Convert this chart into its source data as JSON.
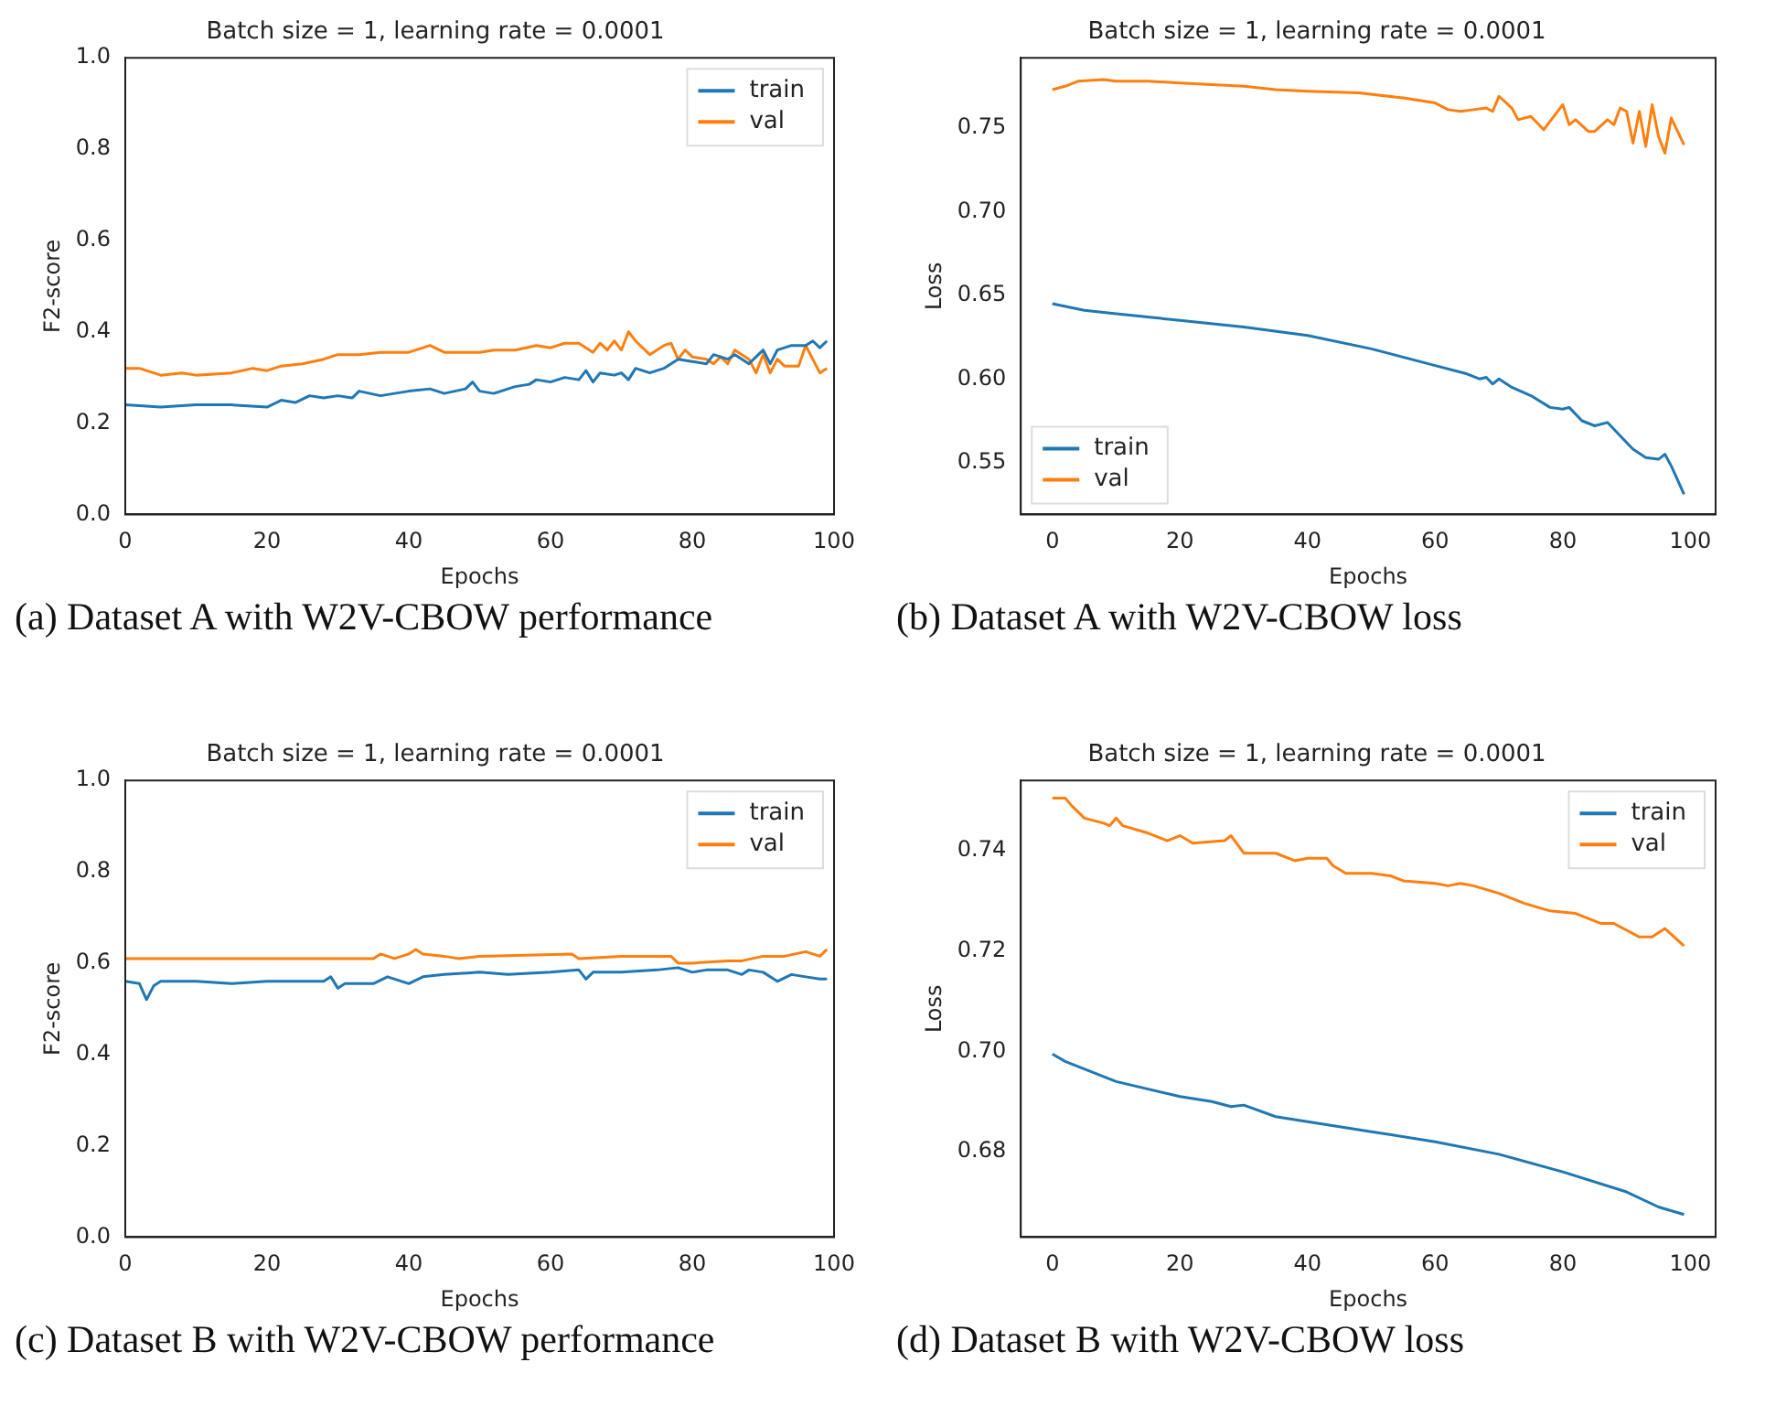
{
  "chart_data": [
    {
      "type": "line",
      "title": "Batch size = 1, learning rate = 0.0001",
      "xlabel": "Epochs",
      "ylabel": "F2-score",
      "xlim": [
        0,
        100
      ],
      "xticks": [
        0,
        20,
        40,
        60,
        80,
        100
      ],
      "ylim": [
        0,
        1
      ],
      "yticks": [
        {
          "value": 0,
          "label": "0.0"
        },
        0.2,
        0.4,
        0.6,
        0.8,
        {
          "value": 1,
          "label": "1.0"
        }
      ],
      "grid": false,
      "legend": "top right",
      "marker": "none",
      "line_style": "solid",
      "annotations": [
        "(a) Dataset A with W2V-CBOW performance"
      ],
      "series": [
        {
          "name": "train",
          "color": "#1f77b4",
          "x": [
            0,
            5,
            10,
            15,
            20,
            22,
            24,
            26,
            28,
            30,
            32,
            33,
            36,
            40,
            43,
            45,
            48,
            49,
            50,
            52,
            55,
            57,
            58,
            60,
            62,
            64,
            65,
            66,
            67,
            69,
            70,
            71,
            72,
            74,
            76,
            77,
            78,
            80,
            82,
            83,
            85,
            86,
            88,
            90,
            91,
            92,
            94,
            96,
            97,
            98,
            99
          ],
          "values": [
            0.24,
            0.235,
            0.24,
            0.24,
            0.235,
            0.25,
            0.245,
            0.26,
            0.255,
            0.26,
            0.255,
            0.27,
            0.26,
            0.27,
            0.275,
            0.265,
            0.275,
            0.29,
            0.27,
            0.265,
            0.28,
            0.285,
            0.295,
            0.29,
            0.3,
            0.295,
            0.315,
            0.29,
            0.31,
            0.305,
            0.31,
            0.295,
            0.32,
            0.31,
            0.32,
            0.33,
            0.34,
            0.335,
            0.33,
            0.35,
            0.34,
            0.35,
            0.33,
            0.36,
            0.33,
            0.36,
            0.37,
            0.37,
            0.38,
            0.365,
            0.38
          ]
        },
        {
          "name": "val",
          "color": "#ff7f0e",
          "x": [
            0,
            2,
            5,
            8,
            10,
            15,
            18,
            20,
            22,
            25,
            28,
            30,
            33,
            36,
            40,
            43,
            45,
            50,
            52,
            55,
            58,
            60,
            62,
            64,
            66,
            67,
            68,
            69,
            70,
            71,
            72,
            74,
            76,
            77,
            78,
            79,
            80,
            82,
            83,
            84,
            85,
            86,
            88,
            89,
            90,
            91,
            92,
            93,
            95,
            96,
            97,
            98,
            99
          ],
          "values": [
            0.32,
            0.32,
            0.305,
            0.31,
            0.305,
            0.31,
            0.32,
            0.315,
            0.325,
            0.33,
            0.34,
            0.35,
            0.35,
            0.355,
            0.355,
            0.37,
            0.355,
            0.355,
            0.36,
            0.36,
            0.37,
            0.365,
            0.375,
            0.375,
            0.355,
            0.375,
            0.36,
            0.38,
            0.36,
            0.4,
            0.38,
            0.35,
            0.37,
            0.375,
            0.34,
            0.36,
            0.345,
            0.34,
            0.33,
            0.345,
            0.33,
            0.36,
            0.34,
            0.31,
            0.35,
            0.31,
            0.34,
            0.325,
            0.325,
            0.37,
            0.34,
            0.31,
            0.32
          ]
        }
      ]
    },
    {
      "type": "line",
      "title": "Batch size = 1, learning rate = 0.0001",
      "xlabel": "Epochs",
      "ylabel": "Loss",
      "xlim": [
        -4.95,
        103.95
      ],
      "xticks": [
        0,
        20,
        40,
        60,
        80,
        100
      ],
      "ylim": [
        0.519,
        0.792
      ],
      "yticks": [
        0.55,
        {
          "value": 0.6,
          "label": "0.60"
        },
        0.65,
        {
          "value": 0.7,
          "label": "0.70"
        },
        0.75
      ],
      "grid": false,
      "legend": "bottom left",
      "marker": "none",
      "line_style": "solid",
      "annotations": [
        "(b) Dataset A with W2V-CBOW loss"
      ],
      "series": [
        {
          "name": "train",
          "color": "#1f77b4",
          "x": [
            0,
            5,
            10,
            20,
            30,
            40,
            50,
            60,
            65,
            67,
            68,
            69,
            70,
            72,
            75,
            78,
            80,
            81,
            83,
            85,
            87,
            89,
            91,
            93,
            95,
            96,
            97,
            99
          ],
          "values": [
            0.645,
            0.641,
            0.639,
            0.635,
            0.631,
            0.626,
            0.618,
            0.608,
            0.603,
            0.6,
            0.601,
            0.597,
            0.6,
            0.595,
            0.59,
            0.583,
            0.582,
            0.583,
            0.575,
            0.572,
            0.574,
            0.566,
            0.558,
            0.553,
            0.552,
            0.555,
            0.548,
            0.531
          ]
        },
        {
          "name": "val",
          "color": "#ff7f0e",
          "x": [
            0,
            2,
            4,
            8,
            10,
            15,
            20,
            30,
            35,
            40,
            48,
            55,
            60,
            62,
            64,
            66,
            68,
            69,
            70,
            72,
            73,
            75,
            77,
            78,
            80,
            81,
            82,
            84,
            85,
            87,
            88,
            89,
            90,
            91,
            92,
            93,
            94,
            95,
            96,
            97,
            99
          ],
          "values": [
            0.773,
            0.775,
            0.778,
            0.779,
            0.778,
            0.778,
            0.777,
            0.775,
            0.773,
            0.772,
            0.771,
            0.768,
            0.765,
            0.761,
            0.76,
            0.761,
            0.762,
            0.76,
            0.769,
            0.762,
            0.755,
            0.757,
            0.749,
            0.754,
            0.764,
            0.752,
            0.755,
            0.748,
            0.748,
            0.755,
            0.752,
            0.762,
            0.76,
            0.741,
            0.76,
            0.739,
            0.764,
            0.745,
            0.735,
            0.756,
            0.74
          ]
        }
      ]
    },
    {
      "type": "line",
      "title": "Batch size = 1, learning rate = 0.0001",
      "xlabel": "Epochs",
      "ylabel": "F2-score",
      "xlim": [
        0,
        100
      ],
      "xticks": [
        0,
        20,
        40,
        60,
        80,
        100
      ],
      "ylim": [
        0,
        1
      ],
      "yticks": [
        {
          "value": 0,
          "label": "0.0"
        },
        0.2,
        0.4,
        0.6,
        0.8,
        {
          "value": 1,
          "label": "1.0"
        }
      ],
      "grid": false,
      "legend": "top right",
      "marker": "none",
      "line_style": "solid",
      "annotations": [
        "(c) Dataset B with W2V-CBOW performance"
      ],
      "series": [
        {
          "name": "train",
          "color": "#1f77b4",
          "x": [
            0,
            2,
            3,
            4,
            5,
            10,
            15,
            20,
            28,
            29,
            30,
            31,
            35,
            37,
            40,
            42,
            45,
            50,
            54,
            60,
            64,
            65,
            66,
            70,
            75,
            78,
            80,
            82,
            85,
            87,
            88,
            90,
            92,
            94,
            96,
            98,
            99
          ],
          "values": [
            0.56,
            0.555,
            0.52,
            0.55,
            0.56,
            0.56,
            0.555,
            0.56,
            0.56,
            0.57,
            0.545,
            0.555,
            0.555,
            0.57,
            0.555,
            0.57,
            0.575,
            0.58,
            0.575,
            0.58,
            0.585,
            0.565,
            0.58,
            0.58,
            0.585,
            0.59,
            0.58,
            0.585,
            0.585,
            0.575,
            0.585,
            0.58,
            0.56,
            0.575,
            0.57,
            0.565,
            0.565
          ]
        },
        {
          "name": "val",
          "color": "#ff7f0e",
          "x": [
            0,
            35,
            36,
            38,
            40,
            41,
            42,
            45,
            47,
            50,
            63,
            64,
            70,
            77,
            78,
            80,
            85,
            87,
            90,
            93,
            96,
            98,
            99
          ],
          "values": [
            0.61,
            0.61,
            0.62,
            0.61,
            0.62,
            0.63,
            0.62,
            0.615,
            0.61,
            0.615,
            0.62,
            0.61,
            0.615,
            0.615,
            0.6,
            0.6,
            0.605,
            0.605,
            0.615,
            0.615,
            0.625,
            0.615,
            0.63
          ]
        }
      ]
    },
    {
      "type": "line",
      "title": "Batch size = 1, learning rate = 0.0001",
      "xlabel": "Epochs",
      "ylabel": "Loss",
      "xlim": [
        -4.95,
        103.95
      ],
      "xticks": [
        0,
        20,
        40,
        60,
        80,
        100
      ],
      "ylim": [
        0.663,
        0.754
      ],
      "yticks": [
        0.68,
        {
          "value": 0.7,
          "label": "0.70"
        },
        0.72,
        0.74
      ],
      "grid": false,
      "legend": "top right",
      "marker": "none",
      "line_style": "solid",
      "annotations": [
        "(d) Dataset B with W2V-CBOW loss"
      ],
      "series": [
        {
          "name": "train",
          "color": "#1f77b4",
          "x": [
            0,
            2,
            5,
            10,
            20,
            25,
            28,
            30,
            35,
            40,
            50,
            60,
            70,
            80,
            90,
            95,
            99
          ],
          "values": [
            0.6995,
            0.698,
            0.6965,
            0.694,
            0.691,
            0.69,
            0.689,
            0.6893,
            0.687,
            0.686,
            0.684,
            0.682,
            0.6795,
            0.676,
            0.672,
            0.669,
            0.6675
          ]
        },
        {
          "name": "val",
          "color": "#ff7f0e",
          "x": [
            0,
            2,
            3,
            5,
            8,
            9,
            10,
            11,
            15,
            18,
            20,
            22,
            27,
            28,
            30,
            35,
            38,
            40,
            43,
            44,
            46,
            50,
            53,
            55,
            60,
            62,
            64,
            66,
            70,
            74,
            78,
            82,
            86,
            88,
            92,
            94,
            96,
            99
          ],
          "values": [
            0.7505,
            0.7505,
            0.749,
            0.7465,
            0.7455,
            0.745,
            0.7465,
            0.745,
            0.7435,
            0.742,
            0.743,
            0.7415,
            0.742,
            0.743,
            0.7395,
            0.7395,
            0.738,
            0.7385,
            0.7385,
            0.737,
            0.7355,
            0.7355,
            0.735,
            0.734,
            0.7335,
            0.733,
            0.7335,
            0.733,
            0.7315,
            0.7295,
            0.728,
            0.7275,
            0.7255,
            0.7255,
            0.7228,
            0.7228,
            0.7245,
            0.721
          ]
        }
      ]
    }
  ]
}
